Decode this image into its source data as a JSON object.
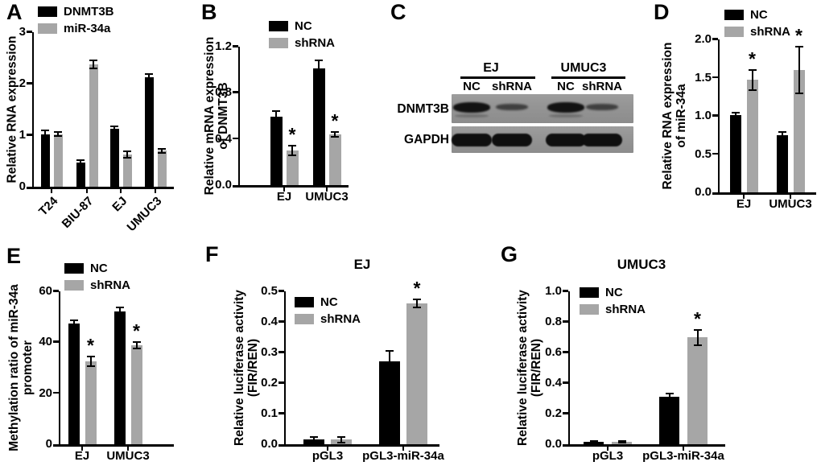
{
  "colors": {
    "black": "#000000",
    "gray": "#a6a6a6",
    "blot_bg": "#959595"
  },
  "sig_marker": "*",
  "panels": {
    "A": {
      "label": "A"
    },
    "B": {
      "label": "B"
    },
    "C": {
      "label": "C"
    },
    "D": {
      "label": "D"
    },
    "E": {
      "label": "E"
    },
    "F": {
      "label": "F"
    },
    "G": {
      "label": "G"
    }
  },
  "chart_data": [
    {
      "panel": "A",
      "type": "bar",
      "title": "",
      "ylabel": [
        "Relative RNA expression"
      ],
      "categories": [
        "T24",
        "BIU-87",
        "EJ",
        "UMUC3"
      ],
      "series": [
        {
          "name": "DNMT3B",
          "color": "black",
          "values": [
            1.02,
            0.47,
            1.13,
            2.12
          ],
          "errors": [
            0.07,
            0.05,
            0.04,
            0.06
          ],
          "sig": [
            false,
            false,
            false,
            false
          ]
        },
        {
          "name": "miR-34a",
          "color": "gray",
          "values": [
            1.02,
            2.37,
            0.62,
            0.7
          ],
          "errors": [
            0.04,
            0.08,
            0.06,
            0.04
          ],
          "sig": [
            false,
            false,
            false,
            false
          ]
        }
      ],
      "yticks": [
        "0",
        "1",
        "2",
        "3"
      ],
      "ylim": [
        0,
        3
      ],
      "grid": false,
      "legend_position": "top-left",
      "xlabel_rotation": 45
    },
    {
      "panel": "B",
      "type": "bar",
      "title": "",
      "ylabel": [
        "Relative mRNA expression",
        "of DNMT3B"
      ],
      "categories": [
        "EJ",
        "UMUC3"
      ],
      "series": [
        {
          "name": "NC",
          "color": "black",
          "values": [
            0.59,
            1.01
          ],
          "errors": [
            0.05,
            0.07
          ],
          "sig": [
            false,
            false
          ]
        },
        {
          "name": "shRNA",
          "color": "gray",
          "values": [
            0.3,
            0.44
          ],
          "errors": [
            0.04,
            0.02
          ],
          "sig": [
            true,
            true
          ]
        }
      ],
      "yticks": [
        "0.0",
        "0.4",
        "0.8",
        "1.2"
      ],
      "ylim": [
        0,
        1.2
      ],
      "grid": false,
      "legend_position": "top",
      "xlabel_rotation": 0
    },
    {
      "panel": "D",
      "type": "bar",
      "title": "",
      "ylabel": [
        "Relative RNA expression",
        "of miR-34a"
      ],
      "categories": [
        "EJ",
        "UMUC3"
      ],
      "series": [
        {
          "name": "NC",
          "color": "black",
          "values": [
            1.01,
            0.75
          ],
          "errors": [
            0.03,
            0.04
          ],
          "sig": [
            false,
            false
          ]
        },
        {
          "name": "shRNA",
          "color": "gray",
          "values": [
            1.47,
            1.6
          ],
          "errors": [
            0.13,
            0.31
          ],
          "sig": [
            true,
            true
          ]
        }
      ],
      "yticks": [
        "0.0",
        "0.5",
        "1.0",
        "1.5",
        "2.0"
      ],
      "ylim": [
        0,
        2
      ],
      "grid": false,
      "legend_position": "top",
      "xlabel_rotation": 0
    },
    {
      "panel": "E",
      "type": "bar",
      "title": "",
      "ylabel": [
        "Methylation ratio of miR-34a",
        "promoter"
      ],
      "categories": [
        "EJ",
        "UMUC3"
      ],
      "series": [
        {
          "name": "NC",
          "color": "black",
          "values": [
            47.5,
            52.0
          ],
          "errors": [
            1.0,
            1.8
          ],
          "sig": [
            false,
            false
          ]
        },
        {
          "name": "shRNA",
          "color": "gray",
          "values": [
            32.5,
            38.8
          ],
          "errors": [
            1.8,
            1.2
          ],
          "sig": [
            true,
            true
          ]
        }
      ],
      "yticks": [
        "0",
        "20",
        "40",
        "60"
      ],
      "ylim": [
        0,
        60
      ],
      "grid": false,
      "legend_position": "top",
      "xlabel_rotation": 0
    },
    {
      "panel": "F",
      "type": "bar",
      "title": "EJ",
      "ylabel": [
        "Relative luciferase activity",
        "(FIR/REN)"
      ],
      "categories": [
        "pGL3",
        "pGL3-miR-34a"
      ],
      "series": [
        {
          "name": "NC",
          "color": "black",
          "values": [
            0.016,
            0.27
          ],
          "errors": [
            0.009,
            0.035
          ],
          "sig": [
            false,
            false
          ]
        },
        {
          "name": "shRNA",
          "color": "gray",
          "values": [
            0.015,
            0.46
          ],
          "errors": [
            0.009,
            0.013
          ],
          "sig": [
            false,
            true
          ]
        }
      ],
      "yticks": [
        "0.0",
        "0.1",
        "0.2",
        "0.3",
        "0.4",
        "0.5"
      ],
      "ylim": [
        0,
        0.5
      ],
      "grid": false,
      "legend_position": "inside-top-left",
      "xlabel_rotation": 0
    },
    {
      "panel": "G",
      "type": "bar",
      "title": "UMUC3",
      "ylabel": [
        "Relative luciferase activity",
        "(FIR/REN)"
      ],
      "categories": [
        "pGL3",
        "pGL3-miR-34a"
      ],
      "series": [
        {
          "name": "NC",
          "color": "black",
          "values": [
            0.015,
            0.31
          ],
          "errors": [
            0.004,
            0.02
          ],
          "sig": [
            false,
            false
          ]
        },
        {
          "name": "shRNA",
          "color": "gray",
          "values": [
            0.015,
            0.7
          ],
          "errors": [
            0.004,
            0.05
          ],
          "sig": [
            false,
            true
          ]
        }
      ],
      "yticks": [
        "0.0",
        "0.2",
        "0.4",
        "0.6",
        "0.8",
        "1.0"
      ],
      "ylim": [
        0,
        1
      ],
      "grid": false,
      "legend_position": "inside-top-left",
      "xlabel_rotation": 0
    }
  ],
  "western_blot": {
    "panel": "C",
    "cell_groups": [
      {
        "name": "EJ",
        "lanes": [
          "NC",
          "shRNA"
        ]
      },
      {
        "name": "UMUC3",
        "lanes": [
          "NC",
          "shRNA"
        ]
      }
    ],
    "rows": [
      {
        "protein": "DNMT3B",
        "bands": [
          "strong",
          "weak",
          "strong",
          "weak"
        ]
      },
      {
        "protein": "GAPDH",
        "bands": [
          "strong",
          "strong",
          "strong",
          "strong"
        ]
      }
    ]
  }
}
